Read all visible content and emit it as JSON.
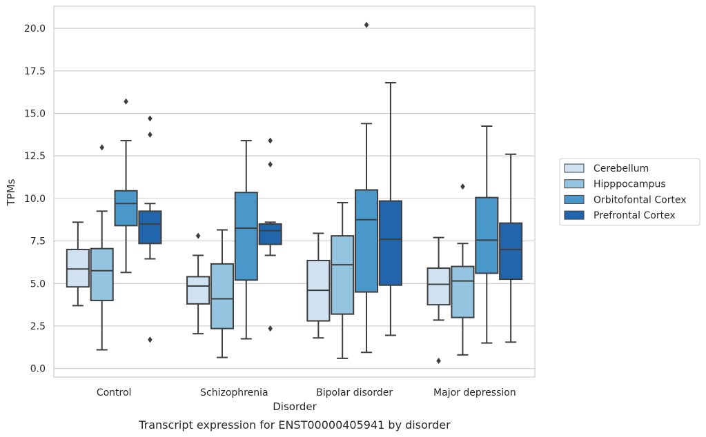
{
  "chart_data": {
    "type": "box",
    "title": "",
    "caption": "Transcript expression for ENST00000405941 by disorder",
    "xlabel": "Disorder",
    "ylabel": "TPMs",
    "ylim": [
      -0.5,
      21.3
    ],
    "yticks": [
      0.0,
      2.5,
      5.0,
      7.5,
      10.0,
      12.5,
      15.0,
      17.5,
      20.0
    ],
    "ytick_labels": [
      "0.0",
      "2.5",
      "5.0",
      "7.5",
      "10.0",
      "12.5",
      "15.0",
      "17.5",
      "20.0"
    ],
    "grid": "horizontal",
    "legend_position": "right",
    "categories": [
      "Control",
      "Schizophrenia",
      "Bipolar disorder",
      "Major depression"
    ],
    "series": [
      {
        "name": "Cerebellum",
        "color": "#d0e1f2",
        "boxes": [
          {
            "whisker_low": 3.7,
            "q1": 4.8,
            "median": 5.85,
            "q3": 7.0,
            "whisker_high": 8.6,
            "outliers": []
          },
          {
            "whisker_low": 2.05,
            "q1": 3.8,
            "median": 4.85,
            "q3": 5.4,
            "whisker_high": 6.65,
            "outliers": [
              7.8
            ]
          },
          {
            "whisker_low": 1.8,
            "q1": 2.8,
            "median": 4.6,
            "q3": 6.35,
            "whisker_high": 7.95,
            "outliers": []
          },
          {
            "whisker_low": 2.85,
            "q1": 3.75,
            "median": 4.95,
            "q3": 5.9,
            "whisker_high": 7.7,
            "outliers": [
              0.45
            ]
          }
        ]
      },
      {
        "name": "Hipppocampus",
        "color": "#94c4df",
        "boxes": [
          {
            "whisker_low": 1.1,
            "q1": 4.0,
            "median": 5.75,
            "q3": 7.05,
            "whisker_high": 9.25,
            "outliers": [
              13.0
            ]
          },
          {
            "whisker_low": 0.65,
            "q1": 2.35,
            "median": 4.1,
            "q3": 6.15,
            "whisker_high": 8.15,
            "outliers": []
          },
          {
            "whisker_low": 0.6,
            "q1": 3.2,
            "median": 6.1,
            "q3": 7.8,
            "whisker_high": 9.75,
            "outliers": []
          },
          {
            "whisker_low": 0.8,
            "q1": 3.0,
            "median": 5.15,
            "q3": 6.0,
            "whisker_high": 7.35,
            "outliers": [
              10.7
            ]
          }
        ]
      },
      {
        "name": "Orbitofontal Cortex",
        "color": "#4a98c9",
        "boxes": [
          {
            "whisker_low": 5.65,
            "q1": 8.4,
            "median": 9.7,
            "q3": 10.45,
            "whisker_high": 13.4,
            "outliers": [
              15.7
            ]
          },
          {
            "whisker_low": 1.75,
            "q1": 5.2,
            "median": 8.25,
            "q3": 10.35,
            "whisker_high": 13.4,
            "outliers": []
          },
          {
            "whisker_low": 0.95,
            "q1": 4.5,
            "median": 8.75,
            "q3": 10.5,
            "whisker_high": 14.4,
            "outliers": [
              20.2
            ]
          },
          {
            "whisker_low": 1.5,
            "q1": 5.6,
            "median": 7.55,
            "q3": 10.05,
            "whisker_high": 14.25,
            "outliers": []
          }
        ]
      },
      {
        "name": "Prefrontal Cortex",
        "color": "#2166ac",
        "boxes": [
          {
            "whisker_low": 6.45,
            "q1": 7.35,
            "median": 8.5,
            "q3": 9.25,
            "whisker_high": 9.7,
            "outliers": [
              1.7,
              13.75,
              14.7
            ]
          },
          {
            "whisker_low": 6.65,
            "q1": 7.3,
            "median": 8.1,
            "q3": 8.5,
            "whisker_high": 8.6,
            "outliers": [
              2.35,
              12.0,
              13.4
            ]
          },
          {
            "whisker_low": 1.95,
            "q1": 4.9,
            "median": 7.6,
            "q3": 9.85,
            "whisker_high": 16.8,
            "outliers": []
          },
          {
            "whisker_low": 1.55,
            "q1": 5.25,
            "median": 7.0,
            "q3": 8.55,
            "whisker_high": 12.6,
            "outliers": []
          }
        ]
      }
    ]
  }
}
